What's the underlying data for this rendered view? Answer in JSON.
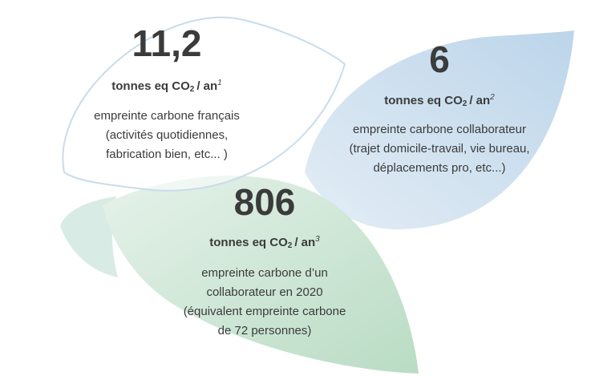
{
  "items": [
    {
      "value": "11,2",
      "unit": "tonnes eq CO",
      "subscript": "2",
      "unit_end": "/ an",
      "note": "1",
      "description": [
        "empreinte carbone français",
        "(activités quotidiennes,",
        "fabrication bien, etc... )"
      ]
    },
    {
      "value": "6",
      "unit": "tonnes eq CO",
      "subscript": "2",
      "unit_end": "/ an",
      "note": "2",
      "description": [
        "empreinte carbone collaborateur",
        "(trajet domicile-travail, vie bureau,",
        "déplacements pro, etc...)"
      ]
    },
    {
      "value": "806",
      "unit": "tonnes eq CO",
      "subscript": "2",
      "unit_end": "/ an",
      "note": "3",
      "description": [
        "empreinte carbone d’un",
        "collaborateur en 2020",
        "(équivalent empreinte carbone",
        "de 72 personnes)"
      ]
    }
  ]
}
